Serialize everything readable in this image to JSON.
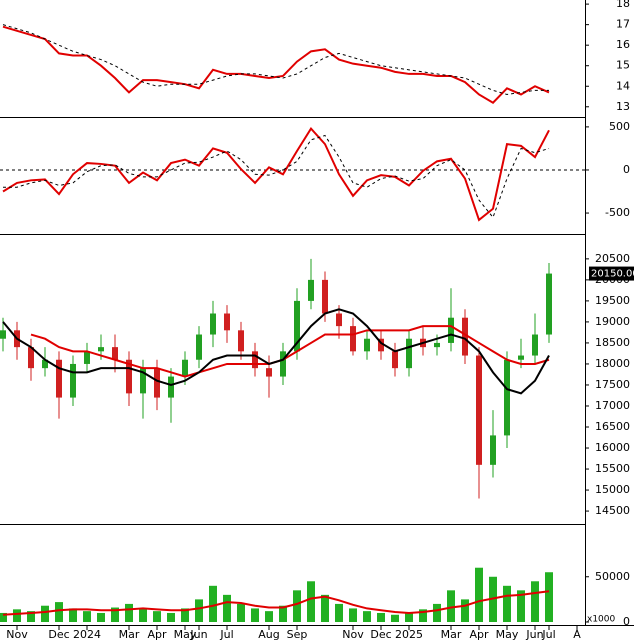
{
  "chart_data": [
    {
      "type": "line",
      "ylim": [
        12.6,
        18.2
      ],
      "yticks": [
        13,
        14,
        15,
        16,
        17,
        18
      ],
      "series": [
        {
          "color": "#e00000",
          "dash": false,
          "values": [
            16.9,
            16.7,
            16.5,
            16.3,
            15.6,
            15.5,
            15.5,
            15.0,
            14.4,
            13.7,
            14.3,
            14.3,
            14.2,
            14.1,
            13.9,
            14.8,
            14.6,
            14.6,
            14.5,
            14.4,
            14.5,
            15.2,
            15.7,
            15.8,
            15.3,
            15.1,
            15.0,
            14.9,
            14.7,
            14.6,
            14.6,
            14.5,
            14.5,
            14.2,
            13.6,
            13.2,
            13.9,
            13.6,
            14.0,
            13.7
          ]
        },
        {
          "color": "#000000",
          "dash": true,
          "values": [
            17.0,
            16.8,
            16.6,
            16.3,
            16.0,
            15.7,
            15.5,
            15.3,
            15.0,
            14.6,
            14.2,
            14.0,
            14.1,
            14.1,
            14.1,
            14.3,
            14.5,
            14.6,
            14.6,
            14.5,
            14.4,
            14.6,
            15.0,
            15.4,
            15.6,
            15.4,
            15.2,
            15.0,
            14.9,
            14.8,
            14.7,
            14.6,
            14.5,
            14.4,
            14.1,
            13.8,
            13.6,
            13.7,
            13.8,
            13.8
          ]
        }
      ]
    },
    {
      "type": "line",
      "ylim": [
        -720,
        580
      ],
      "yticks": [
        -500,
        0,
        500
      ],
      "zero_line": true,
      "series": [
        {
          "color": "#e00000",
          "dash": false,
          "values": [
            -250,
            -150,
            -120,
            -110,
            -280,
            -50,
            80,
            70,
            50,
            -150,
            -30,
            -120,
            80,
            120,
            50,
            250,
            200,
            10,
            -150,
            30,
            -50,
            220,
            480,
            300,
            -50,
            -300,
            -120,
            -60,
            -80,
            -180,
            -10,
            100,
            130,
            -100,
            -580,
            -450,
            300,
            280,
            150,
            460
          ]
        },
        {
          "color": "#000000",
          "dash": true,
          "values": [
            -200,
            -200,
            -150,
            -120,
            -180,
            -150,
            -20,
            50,
            60,
            -40,
            -80,
            -80,
            0,
            80,
            90,
            150,
            220,
            120,
            -50,
            -60,
            0,
            100,
            350,
            400,
            150,
            -150,
            -200,
            -100,
            -70,
            -130,
            -100,
            50,
            120,
            0,
            -350,
            -550,
            -100,
            250,
            200,
            250
          ]
        }
      ]
    },
    {
      "type": "candlestick",
      "ylim": [
        14240,
        21020
      ],
      "yticks": [
        14500,
        15000,
        15500,
        16000,
        16500,
        17000,
        17500,
        18000,
        18500,
        19000,
        19500,
        20000,
        20500
      ],
      "up_color": "#22a022",
      "down_color": "#d02020",
      "open": [
        18600,
        18800,
        18400,
        17900,
        18100,
        17200,
        18000,
        18300,
        18400,
        18100,
        17300,
        17900,
        17200,
        17700,
        18100,
        18700,
        19200,
        18800,
        18300,
        17900,
        17700,
        18300,
        19500,
        20000,
        19200,
        18900,
        18300,
        18600,
        18300,
        17900,
        18600,
        18400,
        18500,
        19100,
        18200,
        15600,
        16300,
        18100,
        18200,
        18700
      ],
      "high": [
        19100,
        19000,
        18600,
        18400,
        18300,
        18200,
        18500,
        18700,
        18700,
        18300,
        18100,
        18100,
        17900,
        18300,
        18900,
        19500,
        19400,
        19000,
        18500,
        18200,
        18500,
        19800,
        20500,
        20200,
        19400,
        19100,
        18800,
        18800,
        18500,
        18800,
        18900,
        18700,
        19800,
        19300,
        18400,
        16900,
        18300,
        18600,
        19200,
        20400
      ],
      "low": [
        18300,
        18100,
        17600,
        17700,
        16700,
        17000,
        17800,
        18100,
        17800,
        17000,
        16700,
        16900,
        16600,
        17500,
        17900,
        18400,
        18500,
        18100,
        17700,
        17200,
        17500,
        18100,
        19300,
        19000,
        18600,
        18200,
        18100,
        18100,
        17700,
        17700,
        18200,
        18200,
        18300,
        18000,
        14800,
        15300,
        16000,
        17900,
        18000,
        18500
      ],
      "close": [
        18800,
        18400,
        17900,
        18100,
        17200,
        18000,
        18300,
        18400,
        18100,
        17300,
        17900,
        17200,
        17700,
        18100,
        18700,
        19200,
        18800,
        18300,
        17900,
        17700,
        18300,
        19500,
        20000,
        19200,
        18900,
        18300,
        18600,
        18300,
        17900,
        18600,
        18400,
        18500,
        19100,
        18200,
        15600,
        16300,
        18100,
        18200,
        18700,
        20150
      ],
      "last_label": {
        "value": 20150,
        "label": "20150.00"
      },
      "series": [
        {
          "color": "#e00000",
          "dash": false,
          "values": [
            null,
            null,
            18700,
            18600,
            18400,
            18300,
            18300,
            18200,
            18100,
            18000,
            17900,
            17900,
            17800,
            17700,
            17800,
            17900,
            18000,
            18000,
            18000,
            18000,
            18100,
            18300,
            18500,
            18700,
            18700,
            18700,
            18800,
            18800,
            18800,
            18800,
            18900,
            18900,
            18900,
            18700,
            18500,
            18300,
            18100,
            18000,
            18000,
            18100
          ]
        },
        {
          "color": "#000000",
          "dash": false,
          "values": [
            19000,
            18600,
            18400,
            18100,
            17900,
            17800,
            17800,
            17900,
            17900,
            17900,
            17800,
            17600,
            17500,
            17600,
            17800,
            18100,
            18200,
            18200,
            18200,
            18000,
            18100,
            18500,
            18900,
            19200,
            19300,
            19200,
            18900,
            18500,
            18300,
            18400,
            18500,
            18600,
            18700,
            18600,
            18300,
            17800,
            17400,
            17300,
            17600,
            18200
          ]
        }
      ]
    },
    {
      "type": "bar",
      "ylim": [
        0,
        105000
      ],
      "yticks": [
        0,
        50000
      ],
      "unit_label": "x1000",
      "color": "#22b022",
      "categories": [
        null,
        "Nov",
        null,
        null,
        "Dec",
        null,
        "2024",
        null,
        null,
        "Mar",
        null,
        "Apr",
        null,
        "May",
        "Jun",
        null,
        "Jul",
        null,
        null,
        "Aug",
        null,
        "Sep",
        null,
        null,
        null,
        "Nov",
        null,
        "Dec",
        null,
        "2025",
        null,
        null,
        "Mar",
        null,
        "Apr",
        null,
        "May",
        null,
        "Jun",
        "Jul",
        null,
        "A"
      ],
      "values": [
        10000,
        14000,
        12000,
        18000,
        22000,
        15000,
        12000,
        10000,
        16000,
        20000,
        14000,
        12000,
        10000,
        15000,
        25000,
        40000,
        30000,
        20000,
        15000,
        12000,
        18000,
        35000,
        45000,
        30000,
        20000,
        15000,
        12000,
        10000,
        8000,
        10000,
        14000,
        20000,
        35000,
        25000,
        60000,
        50000,
        40000,
        35000,
        45000,
        55000,
        null,
        null
      ],
      "series": [
        {
          "color": "#e00000",
          "dash": false,
          "values": [
            8000,
            9000,
            10000,
            11000,
            13000,
            14000,
            14000,
            13000,
            13000,
            14000,
            15000,
            14000,
            13000,
            13000,
            15000,
            18000,
            22000,
            21000,
            18000,
            16000,
            16000,
            20000,
            26000,
            28000,
            24000,
            19000,
            15000,
            13000,
            11000,
            10000,
            11000,
            13000,
            16000,
            18000,
            23000,
            26000,
            29000,
            30000,
            32000,
            34000,
            null,
            null
          ]
        }
      ]
    }
  ]
}
